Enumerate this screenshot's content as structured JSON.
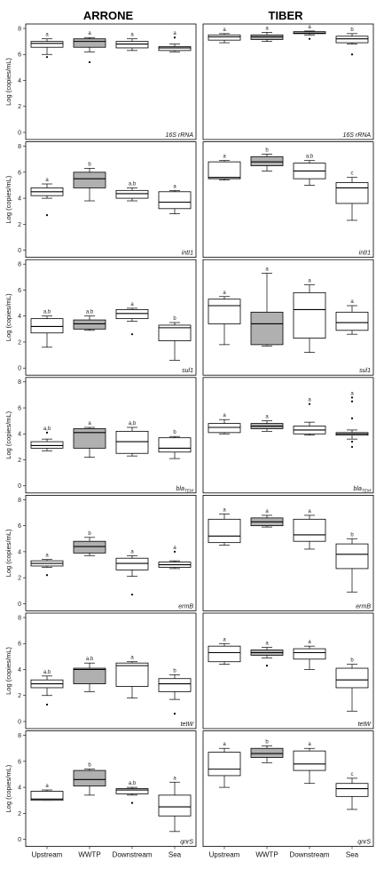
{
  "chart_data": {
    "type": "box",
    "columns": [
      "ARRONE",
      "TIBER"
    ],
    "categories": [
      "Upstream",
      "WWTP",
      "Downstream",
      "Sea"
    ],
    "ylabel": "Log (copies/mL)",
    "ylim": [
      0,
      8
    ],
    "yticks": [
      0,
      2,
      4,
      6,
      8
    ],
    "colors": {
      "wwtp_fill": "#b0b0b0",
      "other_fill": "#ffffff",
      "stroke": "#000000"
    },
    "panels": [
      {
        "gene": "16S rRNA",
        "gene_main": "16S rRNA",
        "gene_sub": "",
        "column": "ARRONE",
        "boxes": [
          {
            "category": "Upstream",
            "whisker_low": 6.0,
            "q1": 6.55,
            "median": 6.85,
            "q3": 7.0,
            "whisker_high": 7.2,
            "outliers": [
              5.8
            ],
            "letter": "a"
          },
          {
            "category": "WWTP",
            "whisker_low": 6.2,
            "q1": 6.55,
            "median": 7.0,
            "q3": 7.2,
            "whisker_high": 7.3,
            "outliers": [
              5.4
            ],
            "letter": "a"
          },
          {
            "category": "Downstream",
            "whisker_low": 6.3,
            "q1": 6.5,
            "median": 6.8,
            "q3": 7.0,
            "whisker_high": 7.2,
            "outliers": [],
            "letter": "a"
          },
          {
            "category": "Sea",
            "whisker_low": 6.2,
            "q1": 6.3,
            "median": 6.5,
            "q3": 6.6,
            "whisker_high": 6.8,
            "outliers": [
              7.3
            ],
            "letter": "a"
          }
        ]
      },
      {
        "gene": "16S rRNA",
        "gene_main": "16S rRNA",
        "gene_sub": "",
        "column": "TIBER",
        "boxes": [
          {
            "category": "Upstream",
            "whisker_low": 6.9,
            "q1": 7.1,
            "median": 7.35,
            "q3": 7.5,
            "whisker_high": 7.6,
            "outliers": [],
            "letter": "a"
          },
          {
            "category": "WWTP",
            "whisker_low": 7.0,
            "q1": 7.15,
            "median": 7.35,
            "q3": 7.5,
            "whisker_high": 7.7,
            "outliers": [],
            "letter": "a"
          },
          {
            "category": "Downstream",
            "whisker_low": 7.5,
            "q1": 7.6,
            "median": 7.65,
            "q3": 7.75,
            "whisker_high": 7.8,
            "outliers": [
              7.2
            ],
            "letter": "a"
          },
          {
            "category": "Sea",
            "whisker_low": 6.8,
            "q1": 6.9,
            "median": 7.2,
            "q3": 7.4,
            "whisker_high": 7.6,
            "outliers": [
              6.0
            ],
            "letter": "b"
          }
        ]
      },
      {
        "gene": "intI1",
        "gene_main": "intI1",
        "gene_sub": "",
        "column": "ARRONE",
        "boxes": [
          {
            "category": "Upstream",
            "whisker_low": 4.0,
            "q1": 4.2,
            "median": 4.5,
            "q3": 4.8,
            "whisker_high": 5.1,
            "outliers": [
              2.7
            ],
            "letter": "a"
          },
          {
            "category": "WWTP",
            "whisker_low": 3.8,
            "q1": 4.8,
            "median": 5.5,
            "q3": 6.0,
            "whisker_high": 6.3,
            "outliers": [],
            "letter": "b"
          },
          {
            "category": "Downstream",
            "whisker_low": 3.8,
            "q1": 4.0,
            "median": 4.35,
            "q3": 4.6,
            "whisker_high": 4.8,
            "outliers": [],
            "letter": "a,b"
          },
          {
            "category": "Sea",
            "whisker_low": 2.8,
            "q1": 3.2,
            "median": 3.7,
            "q3": 4.5,
            "whisker_high": 4.6,
            "outliers": [],
            "letter": "a"
          }
        ]
      },
      {
        "gene": "intI1",
        "gene_main": "intI1",
        "gene_sub": "",
        "column": "TIBER",
        "boxes": [
          {
            "category": "Upstream",
            "whisker_low": 5.4,
            "q1": 5.5,
            "median": 5.6,
            "q3": 6.8,
            "whisker_high": 6.9,
            "outliers": [],
            "letter": "a"
          },
          {
            "category": "WWTP",
            "whisker_low": 6.1,
            "q1": 6.5,
            "median": 6.8,
            "q3": 7.2,
            "whisker_high": 7.4,
            "outliers": [],
            "letter": "b"
          },
          {
            "category": "Downstream",
            "whisker_low": 5.0,
            "q1": 5.5,
            "median": 6.1,
            "q3": 6.7,
            "whisker_high": 6.9,
            "outliers": [],
            "letter": "a,b"
          },
          {
            "category": "Sea",
            "whisker_low": 2.3,
            "q1": 3.6,
            "median": 4.8,
            "q3": 5.2,
            "whisker_high": 5.6,
            "outliers": [],
            "letter": "c"
          }
        ]
      },
      {
        "gene": "sul1",
        "gene_main": "sul1",
        "gene_sub": "",
        "column": "ARRONE",
        "boxes": [
          {
            "category": "Upstream",
            "whisker_low": 1.6,
            "q1": 2.7,
            "median": 3.2,
            "q3": 3.8,
            "whisker_high": 4.0,
            "outliers": [],
            "letter": "a,b"
          },
          {
            "category": "WWTP",
            "whisker_low": 2.9,
            "q1": 3.0,
            "median": 3.4,
            "q3": 3.7,
            "whisker_high": 4.0,
            "outliers": [],
            "letter": "a,b"
          },
          {
            "category": "Downstream",
            "whisker_low": 3.6,
            "q1": 3.8,
            "median": 4.2,
            "q3": 4.5,
            "whisker_high": 4.6,
            "outliers": [
              2.6
            ],
            "letter": "a"
          },
          {
            "category": "Sea",
            "whisker_low": 0.6,
            "q1": 2.1,
            "median": 3.1,
            "q3": 3.3,
            "whisker_high": 3.5,
            "outliers": [],
            "letter": "b"
          }
        ]
      },
      {
        "gene": "sul1",
        "gene_main": "sul1",
        "gene_sub": "",
        "column": "TIBER",
        "boxes": [
          {
            "category": "Upstream",
            "whisker_low": 1.8,
            "q1": 3.4,
            "median": 4.8,
            "q3": 5.3,
            "whisker_high": 5.5,
            "outliers": [],
            "letter": "a"
          },
          {
            "category": "WWTP",
            "whisker_low": 1.7,
            "q1": 1.8,
            "median": 3.4,
            "q3": 4.3,
            "whisker_high": 7.3,
            "outliers": [],
            "letter": "a"
          },
          {
            "category": "Downstream",
            "whisker_low": 1.2,
            "q1": 2.3,
            "median": 4.5,
            "q3": 5.8,
            "whisker_high": 6.4,
            "outliers": [],
            "letter": "a"
          },
          {
            "category": "Sea",
            "whisker_low": 2.6,
            "q1": 2.9,
            "median": 3.5,
            "q3": 4.3,
            "whisker_high": 4.8,
            "outliers": [],
            "letter": "a"
          }
        ]
      },
      {
        "gene": "blaTEM",
        "gene_main": "bla",
        "gene_sub": "TEM",
        "column": "ARRONE",
        "boxes": [
          {
            "category": "Upstream",
            "whisker_low": 2.7,
            "q1": 2.9,
            "median": 3.1,
            "q3": 3.4,
            "whisker_high": 3.6,
            "outliers": [
              4.1
            ],
            "letter": "a,b"
          },
          {
            "category": "WWTP",
            "whisker_low": 2.2,
            "q1": 2.9,
            "median": 4.1,
            "q3": 4.4,
            "whisker_high": 4.5,
            "outliers": [],
            "letter": "a"
          },
          {
            "category": "Downstream",
            "whisker_low": 2.3,
            "q1": 2.5,
            "median": 3.4,
            "q3": 4.2,
            "whisker_high": 4.5,
            "outliers": [],
            "letter": "a,b"
          },
          {
            "category": "Sea",
            "whisker_low": 2.1,
            "q1": 2.6,
            "median": 2.9,
            "q3": 3.7,
            "whisker_high": 3.8,
            "outliers": [],
            "letter": "b"
          }
        ]
      },
      {
        "gene": "blaTEM",
        "gene_main": "bla",
        "gene_sub": "TEM",
        "column": "TIBER",
        "boxes": [
          {
            "category": "Upstream",
            "whisker_low": 4.0,
            "q1": 4.1,
            "median": 4.5,
            "q3": 4.8,
            "whisker_high": 5.1,
            "outliers": [],
            "letter": "a"
          },
          {
            "category": "WWTP",
            "whisker_low": 4.2,
            "q1": 4.4,
            "median": 4.6,
            "q3": 4.8,
            "whisker_high": 5.0,
            "outliers": [],
            "letter": "a"
          },
          {
            "category": "Downstream",
            "whisker_low": 3.9,
            "q1": 4.0,
            "median": 4.3,
            "q3": 4.6,
            "whisker_high": 4.9,
            "outliers": [
              6.3
            ],
            "letter": "a"
          },
          {
            "category": "Sea",
            "whisker_low": 3.6,
            "q1": 3.9,
            "median": 4.0,
            "q3": 4.1,
            "whisker_high": 4.3,
            "outliers": [
              6.8,
              6.5,
              5.2,
              3.4,
              3.0
            ],
            "letter": "a"
          }
        ]
      },
      {
        "gene": "ermB",
        "gene_main": "ermB",
        "gene_sub": "",
        "column": "ARRONE",
        "boxes": [
          {
            "category": "Upstream",
            "whisker_low": 2.8,
            "q1": 2.9,
            "median": 3.1,
            "q3": 3.3,
            "whisker_high": 3.4,
            "outliers": [
              2.2
            ],
            "letter": "a"
          },
          {
            "category": "WWTP",
            "whisker_low": 3.7,
            "q1": 3.9,
            "median": 4.4,
            "q3": 4.8,
            "whisker_high": 5.1,
            "outliers": [],
            "letter": "b"
          },
          {
            "category": "Downstream",
            "whisker_low": 2.1,
            "q1": 2.6,
            "median": 3.1,
            "q3": 3.5,
            "whisker_high": 3.7,
            "outliers": [
              0.7
            ],
            "letter": "a"
          },
          {
            "category": "Sea",
            "whisker_low": 2.7,
            "q1": 2.8,
            "median": 3.0,
            "q3": 3.2,
            "whisker_high": 3.3,
            "outliers": [
              4.0
            ],
            "letter": "a"
          }
        ]
      },
      {
        "gene": "ermB",
        "gene_main": "ermB",
        "gene_sub": "",
        "column": "TIBER",
        "boxes": [
          {
            "category": "Upstream",
            "whisker_low": 4.5,
            "q1": 4.7,
            "median": 5.2,
            "q3": 6.5,
            "whisker_high": 6.9,
            "outliers": [],
            "letter": "a"
          },
          {
            "category": "WWTP",
            "whisker_low": 5.9,
            "q1": 6.0,
            "median": 6.3,
            "q3": 6.6,
            "whisker_high": 6.8,
            "outliers": [],
            "letter": "a"
          },
          {
            "category": "Downstream",
            "whisker_low": 4.2,
            "q1": 4.8,
            "median": 5.3,
            "q3": 6.5,
            "whisker_high": 6.8,
            "outliers": [],
            "letter": "a"
          },
          {
            "category": "Sea",
            "whisker_low": 0.9,
            "q1": 2.7,
            "median": 3.8,
            "q3": 4.6,
            "whisker_high": 5.0,
            "outliers": [],
            "letter": "b"
          }
        ]
      },
      {
        "gene": "tetW",
        "gene_main": "tetW",
        "gene_sub": "",
        "column": "ARRONE",
        "boxes": [
          {
            "category": "Upstream",
            "whisker_low": 2.0,
            "q1": 2.6,
            "median": 2.9,
            "q3": 3.2,
            "whisker_high": 3.5,
            "outliers": [
              1.3
            ],
            "letter": "a,b"
          },
          {
            "category": "WWTP",
            "whisker_low": 2.3,
            "q1": 2.9,
            "median": 4.0,
            "q3": 4.1,
            "whisker_high": 4.5,
            "outliers": [],
            "letter": "a,b"
          },
          {
            "category": "Downstream",
            "whisker_low": 1.8,
            "q1": 2.7,
            "median": 4.3,
            "q3": 4.5,
            "whisker_high": 4.6,
            "outliers": [],
            "letter": "a"
          },
          {
            "category": "Sea",
            "whisker_low": 1.7,
            "q1": 2.3,
            "median": 2.9,
            "q3": 3.3,
            "whisker_high": 3.6,
            "outliers": [
              0.6
            ],
            "letter": "b"
          }
        ]
      },
      {
        "gene": "tetW",
        "gene_main": "tetW",
        "gene_sub": "",
        "column": "TIBER",
        "boxes": [
          {
            "category": "Upstream",
            "whisker_low": 4.4,
            "q1": 4.6,
            "median": 5.3,
            "q3": 5.8,
            "whisker_high": 6.0,
            "outliers": [],
            "letter": "a"
          },
          {
            "category": "WWTP",
            "whisker_low": 4.9,
            "q1": 5.1,
            "median": 5.3,
            "q3": 5.5,
            "whisker_high": 5.7,
            "outliers": [
              4.3
            ],
            "letter": "a"
          },
          {
            "category": "Downstream",
            "whisker_low": 4.0,
            "q1": 4.8,
            "median": 5.3,
            "q3": 5.6,
            "whisker_high": 5.8,
            "outliers": [],
            "letter": "a"
          },
          {
            "category": "Sea",
            "whisker_low": 0.8,
            "q1": 2.6,
            "median": 3.2,
            "q3": 4.1,
            "whisker_high": 4.4,
            "outliers": [],
            "letter": "b"
          }
        ]
      },
      {
        "gene": "qnrS",
        "gene_main": "qnrS",
        "gene_sub": "",
        "column": "ARRONE",
        "boxes": [
          {
            "category": "Upstream",
            "whisker_low": 3.0,
            "q1": 3.0,
            "median": 3.1,
            "q3": 3.7,
            "whisker_high": 3.8,
            "outliers": [],
            "letter": "a"
          },
          {
            "category": "WWTP",
            "whisker_low": 3.4,
            "q1": 4.1,
            "median": 4.6,
            "q3": 5.3,
            "whisker_high": 5.4,
            "outliers": [],
            "letter": "b"
          },
          {
            "category": "Downstream",
            "whisker_low": 3.4,
            "q1": 3.5,
            "median": 3.8,
            "q3": 3.9,
            "whisker_high": 4.0,
            "outliers": [
              2.8
            ],
            "letter": "a,b"
          },
          {
            "category": "Sea",
            "whisker_low": 0.6,
            "q1": 1.8,
            "median": 2.5,
            "q3": 3.4,
            "whisker_high": 4.4,
            "outliers": [],
            "letter": "a"
          }
        ]
      },
      {
        "gene": "qnrS",
        "gene_main": "qnrS",
        "gene_sub": "",
        "column": "TIBER",
        "boxes": [
          {
            "category": "Upstream",
            "whisker_low": 4.0,
            "q1": 4.9,
            "median": 5.4,
            "q3": 6.7,
            "whisker_high": 7.0,
            "outliers": [],
            "letter": "a"
          },
          {
            "category": "WWTP",
            "whisker_low": 5.9,
            "q1": 6.3,
            "median": 6.6,
            "q3": 7.0,
            "whisker_high": 7.2,
            "outliers": [],
            "letter": "b"
          },
          {
            "category": "Downstream",
            "whisker_low": 4.3,
            "q1": 5.3,
            "median": 5.8,
            "q3": 6.8,
            "whisker_high": 7.0,
            "outliers": [],
            "letter": "a"
          },
          {
            "category": "Sea",
            "whisker_low": 2.3,
            "q1": 3.3,
            "median": 3.9,
            "q3": 4.3,
            "whisker_high": 4.7,
            "outliers": [],
            "letter": "c"
          }
        ]
      }
    ]
  }
}
